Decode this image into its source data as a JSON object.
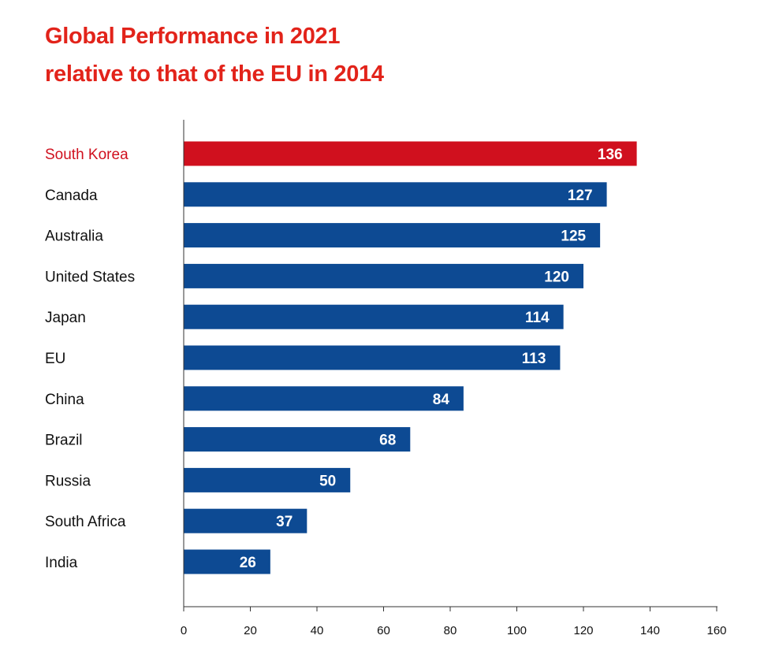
{
  "title": {
    "line1": "Global Performance in 2021",
    "line2": "relative to that of the EU in 2014"
  },
  "colors": {
    "highlight": "#d0101e",
    "bar": "#0d4a93",
    "title": "#e2231a",
    "label": "#111111",
    "bar_text": "#ffffff",
    "axis": "#333333"
  },
  "chart_data": {
    "type": "bar",
    "orientation": "horizontal",
    "categories": [
      "South Korea",
      "Canada",
      "Australia",
      "United States",
      "Japan",
      "EU",
      "China",
      "Brazil",
      "Russia",
      "South Africa",
      "India"
    ],
    "values": [
      136,
      127,
      125,
      120,
      114,
      113,
      84,
      68,
      50,
      37,
      26
    ],
    "highlight": [
      "South Korea"
    ],
    "xlim": [
      0,
      160
    ],
    "xticks": [
      0,
      20,
      40,
      60,
      80,
      100,
      120,
      140,
      160
    ],
    "grid": false,
    "legend": "none",
    "xlabel": "",
    "ylabel": ""
  }
}
